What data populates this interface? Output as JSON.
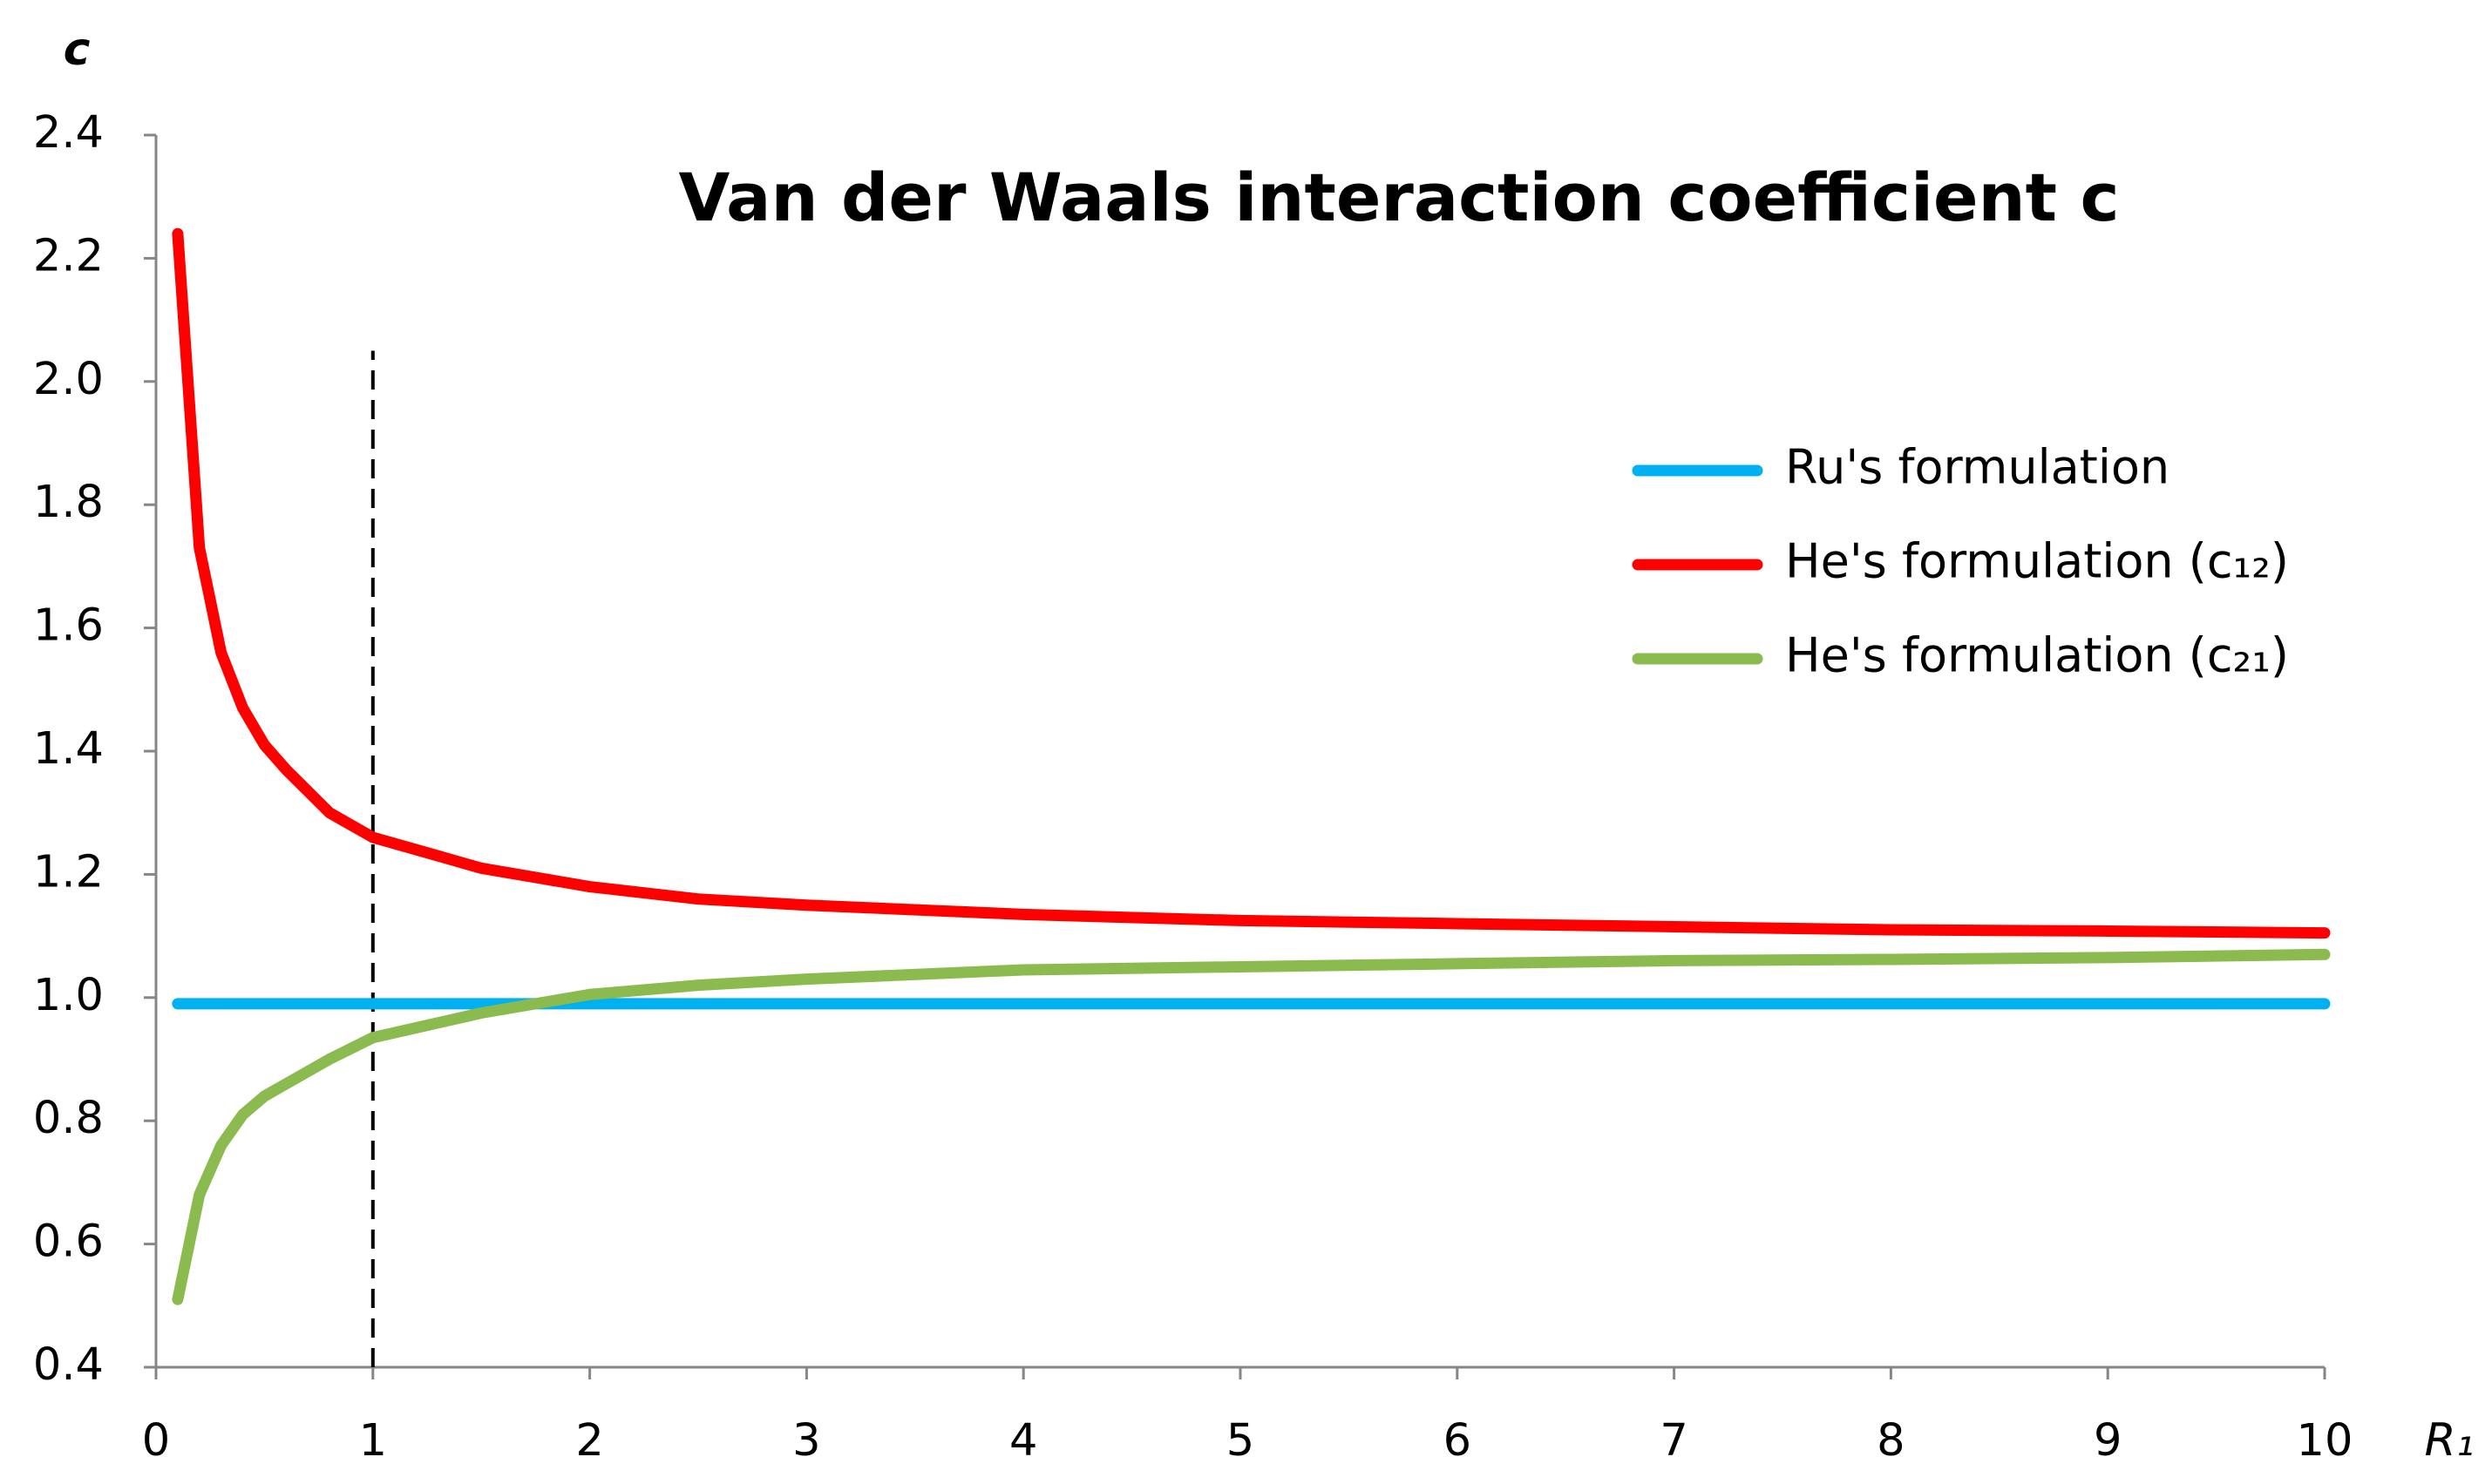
{
  "chart_data": {
    "type": "line",
    "title": "Van der Waals interaction coefficient c",
    "x_label": "R₁",
    "y_label": "c",
    "x": [
      0.1,
      0.2,
      0.3,
      0.4,
      0.5,
      0.6,
      0.8,
      1,
      1.5,
      2,
      2.5,
      3,
      4,
      5,
      6,
      7,
      8,
      9,
      10
    ],
    "series": [
      {
        "name": "Ru's formulation",
        "color": "#00b0f0",
        "values": [
          0.99,
          0.99,
          0.99,
          0.99,
          0.99,
          0.99,
          0.99,
          0.99,
          0.99,
          0.99,
          0.99,
          0.99,
          0.99,
          0.99,
          0.99,
          0.99,
          0.99,
          0.99,
          0.99
        ]
      },
      {
        "name": "He's formulation (c₁₂)",
        "color": "#ff0000",
        "values": [
          2.24,
          1.73,
          1.56,
          1.47,
          1.41,
          1.37,
          1.3,
          1.26,
          1.21,
          1.18,
          1.16,
          1.15,
          1.135,
          1.125,
          1.12,
          1.115,
          1.11,
          1.108,
          1.105
        ]
      },
      {
        "name": "He's formulation (c₂₁)",
        "color": "#8bbb4f",
        "values": [
          0.51,
          0.68,
          0.76,
          0.81,
          0.84,
          0.86,
          0.9,
          0.935,
          0.975,
          1.005,
          1.02,
          1.03,
          1.045,
          1.05,
          1.055,
          1.06,
          1.062,
          1.065,
          1.07
        ]
      }
    ],
    "reference_lines": [
      {
        "x": 1,
        "y_top": 2.05
      }
    ],
    "xlim": [
      0,
      10
    ],
    "xticks": [
      0,
      1,
      2,
      3,
      4,
      5,
      6,
      7,
      8,
      9,
      10
    ],
    "ylim": [
      0.4,
      2.4
    ],
    "yticks": [
      0.4,
      0.6,
      0.8,
      {
        "value": 1,
        "label": "1.0"
      },
      1.2,
      1.4,
      1.6,
      1.8,
      {
        "value": 2,
        "label": "2.0"
      },
      2.2,
      2.4
    ],
    "grid": false,
    "legend": "upper right"
  }
}
